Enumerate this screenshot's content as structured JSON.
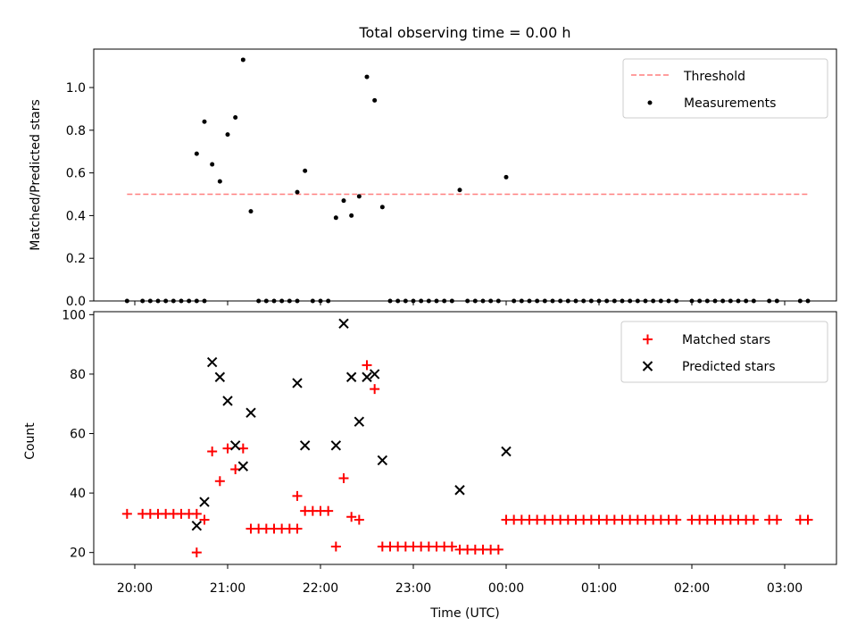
{
  "chart_data": [
    {
      "type": "scatter",
      "title": "Total observing time = 0.00 h",
      "xlabel": "",
      "ylabel": "Matched/Predicted stars",
      "xlim": [
        "19:55",
        "03:37"
      ],
      "ylim": [
        0,
        1.18
      ],
      "yticks": [
        0.0,
        0.2,
        0.4,
        0.6,
        0.8,
        1.0
      ],
      "ytick_labels": [
        "0.0",
        "0.2",
        "0.4",
        "0.6",
        "0.8",
        "1.0"
      ],
      "grid": false,
      "legend_position": "upper right",
      "legend": [
        "Threshold",
        "Measurements"
      ],
      "series": [
        {
          "name": "Threshold",
          "kind": "dashed-line",
          "color": "#ff7f7f",
          "x": [
            "19:55",
            "03:15"
          ],
          "y": [
            0.5,
            0.5
          ]
        },
        {
          "name": "Measurements",
          "kind": "dot",
          "color": "#000000",
          "x": [
            "19:55",
            "20:05",
            "20:10",
            "20:15",
            "20:20",
            "20:25",
            "20:30",
            "20:35",
            "20:40",
            "20:45",
            "20:40",
            "20:45",
            "20:50",
            "20:55",
            "21:00",
            "21:05",
            "21:10",
            "21:15",
            "21:20",
            "21:25",
            "21:30",
            "21:35",
            "21:40",
            "21:45",
            "21:45",
            "21:50",
            "21:55",
            "22:00",
            "22:05",
            "22:10",
            "22:15",
            "22:20",
            "22:25",
            "22:30",
            "22:35",
            "22:40",
            "22:45",
            "22:50",
            "22:55",
            "23:00",
            "23:05",
            "23:10",
            "23:15",
            "23:20",
            "23:25",
            "23:30",
            "23:35",
            "23:40",
            "23:45",
            "23:50",
            "23:55",
            "00:00",
            "00:05",
            "00:10",
            "00:15",
            "00:20",
            "00:25",
            "00:30",
            "00:35",
            "00:40",
            "00:45",
            "00:50",
            "00:55",
            "01:00",
            "01:05",
            "01:10",
            "01:15",
            "01:20",
            "01:25",
            "01:30",
            "01:35",
            "01:40",
            "01:45",
            "01:50",
            "02:00",
            "02:05",
            "02:10",
            "02:15",
            "02:20",
            "02:25",
            "02:30",
            "02:35",
            "02:40",
            "02:50",
            "02:55",
            "03:10",
            "03:15"
          ],
          "y": [
            0.0,
            0.0,
            0.0,
            0.0,
            0.0,
            0.0,
            0.0,
            0.0,
            0.0,
            0.0,
            0.69,
            0.84,
            0.64,
            0.56,
            0.78,
            0.86,
            1.13,
            0.42,
            0.0,
            0.0,
            0.0,
            0.0,
            0.0,
            0.51,
            0.0,
            0.61,
            0.0,
            0.0,
            0.0,
            0.39,
            0.47,
            0.4,
            0.49,
            1.05,
            0.94,
            0.44,
            0.0,
            0.0,
            0.0,
            0.0,
            0.0,
            0.0,
            0.0,
            0.0,
            0.0,
            0.52,
            0.0,
            0.0,
            0.0,
            0.0,
            0.0,
            0.58,
            0.0,
            0.0,
            0.0,
            0.0,
            0.0,
            0.0,
            0.0,
            0.0,
            0.0,
            0.0,
            0.0,
            0.0,
            0.0,
            0.0,
            0.0,
            0.0,
            0.0,
            0.0,
            0.0,
            0.0,
            0.0,
            0.0,
            0.0,
            0.0,
            0.0,
            0.0,
            0.0,
            0.0,
            0.0,
            0.0,
            0.0,
            0.0,
            0.0,
            0.0,
            0.0
          ]
        }
      ]
    },
    {
      "type": "scatter",
      "title": "",
      "xlabel": "Time (UTC)",
      "ylabel": "Count",
      "xlim": [
        "19:55",
        "03:37"
      ],
      "ylim": [
        16,
        101
      ],
      "yticks": [
        20,
        40,
        60,
        80,
        100
      ],
      "ytick_labels": [
        "20",
        "40",
        "60",
        "80",
        "100"
      ],
      "xticks": [
        "20:00",
        "21:00",
        "22:00",
        "23:00",
        "00:00",
        "01:00",
        "02:00",
        "03:00"
      ],
      "grid": false,
      "legend_position": "upper right",
      "legend": [
        "Matched stars",
        "Predicted stars"
      ],
      "series": [
        {
          "name": "Matched stars",
          "kind": "plus",
          "color": "#ff0000",
          "x": [
            "19:55",
            "20:05",
            "20:10",
            "20:15",
            "20:20",
            "20:25",
            "20:30",
            "20:35",
            "20:40",
            "20:45",
            "20:40",
            "20:45",
            "20:50",
            "20:55",
            "21:00",
            "21:05",
            "21:10",
            "21:15",
            "21:20",
            "21:25",
            "21:30",
            "21:35",
            "21:40",
            "21:45",
            "21:45",
            "21:50",
            "21:55",
            "22:00",
            "22:05",
            "22:10",
            "22:15",
            "22:20",
            "22:25",
            "22:30",
            "22:35",
            "22:40",
            "22:45",
            "22:50",
            "22:55",
            "23:00",
            "23:05",
            "23:10",
            "23:15",
            "23:20",
            "23:25",
            "23:30",
            "23:35",
            "23:40",
            "23:45",
            "23:50",
            "23:55",
            "00:00",
            "00:05",
            "00:10",
            "00:15",
            "00:20",
            "00:25",
            "00:30",
            "00:35",
            "00:40",
            "00:45",
            "00:50",
            "00:55",
            "01:00",
            "01:05",
            "01:10",
            "01:15",
            "01:20",
            "01:25",
            "01:30",
            "01:35",
            "01:40",
            "01:45",
            "01:50",
            "02:00",
            "02:05",
            "02:10",
            "02:15",
            "02:20",
            "02:25",
            "02:30",
            "02:35",
            "02:40",
            "02:50",
            "02:55",
            "03:10",
            "03:15"
          ],
          "y": [
            33,
            33,
            33,
            33,
            33,
            33,
            33,
            33,
            33,
            31,
            20,
            31,
            54,
            44,
            55,
            48,
            55,
            28,
            28,
            28,
            28,
            28,
            28,
            39,
            28,
            34,
            34,
            34,
            34,
            22,
            45,
            32,
            31,
            83,
            75,
            22,
            22,
            22,
            22,
            22,
            22,
            22,
            22,
            22,
            22,
            21,
            21,
            21,
            21,
            21,
            21,
            31,
            31,
            31,
            31,
            31,
            31,
            31,
            31,
            31,
            31,
            31,
            31,
            31,
            31,
            31,
            31,
            31,
            31,
            31,
            31,
            31,
            31,
            31,
            31,
            31,
            31,
            31,
            31,
            31,
            31,
            31,
            31,
            31,
            31,
            31,
            31
          ]
        },
        {
          "name": "Predicted stars",
          "kind": "x",
          "color": "#000000",
          "x": [
            "20:40",
            "20:45",
            "20:50",
            "20:55",
            "21:00",
            "21:05",
            "21:10",
            "21:15",
            "21:45",
            "21:50",
            "22:10",
            "22:15",
            "22:20",
            "22:25",
            "22:30",
            "22:35",
            "22:40",
            "23:30",
            "00:00"
          ],
          "y": [
            29,
            37,
            84,
            79,
            71,
            56,
            49,
            67,
            77,
            56,
            56,
            97,
            79,
            64,
            79,
            80,
            51,
            41,
            54
          ]
        }
      ]
    }
  ]
}
